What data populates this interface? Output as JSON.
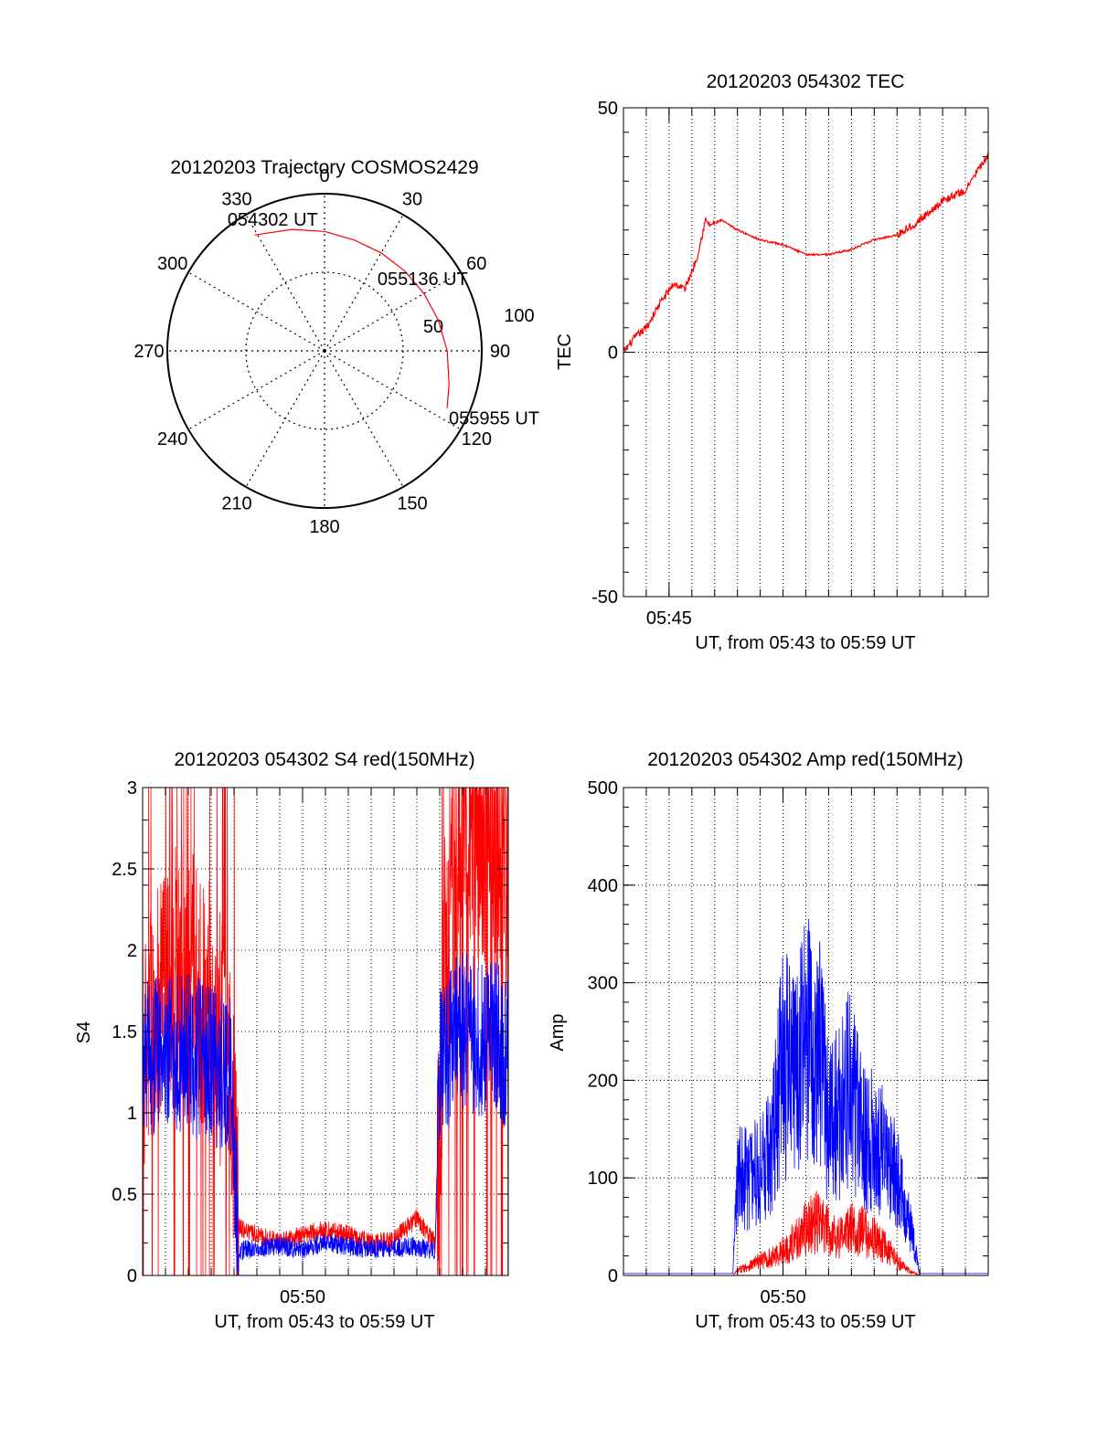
{
  "colors": {
    "red": "#ff0000",
    "blue": "#0000ff",
    "axis": "#000000",
    "grid": "#000000"
  },
  "chart_data": [
    {
      "id": "trajectory",
      "type": "polar",
      "title": "20120203 Trajectory COSMOS2429",
      "angle_labels": [
        "0",
        "30",
        "60",
        "90",
        "120",
        "150",
        "180",
        "210",
        "240",
        "270",
        "300",
        "330"
      ],
      "radial_labels": [
        "50",
        "100"
      ],
      "rlim": [
        0,
        100
      ],
      "grid": true,
      "annotations": [
        {
          "text": "054302 UT",
          "az": 329,
          "r": 86
        },
        {
          "text": "055136 UT",
          "az": 45,
          "r": 64
        },
        {
          "text": "055955 UT",
          "az": 115,
          "r": 86
        }
      ],
      "series": [
        {
          "color": "#ff0000",
          "az": [
            329,
            345,
            0,
            15,
            30,
            45,
            60,
            75,
            90,
            105,
            115
          ],
          "r": [
            86,
            80,
            76,
            73,
            72,
            72,
            73,
            75,
            78,
            82,
            86
          ]
        }
      ]
    },
    {
      "id": "tec",
      "type": "line",
      "title": "20120203 054302 TEC",
      "xlabel": "UT, from 05:43 to 05:59 UT",
      "ylabel": "TEC",
      "xlim": [
        43.0,
        59.0
      ],
      "ylim": [
        -50,
        50
      ],
      "xtick_labels": [
        {
          "value": 45,
          "label": "05:45"
        }
      ],
      "yticks": [
        -50,
        0,
        50
      ],
      "grid": true,
      "series": [
        {
          "color": "#ff0000",
          "x": [
            43.0,
            43.5,
            44.0,
            44.6,
            45.2,
            45.7,
            46.2,
            46.6,
            46.8,
            47.3,
            48.0,
            49.0,
            50.0,
            51.0,
            52.0,
            53.0,
            54.0,
            55.0,
            56.0,
            57.0,
            58.0,
            58.5,
            59.0
          ],
          "y": [
            0,
            3,
            5,
            10,
            14,
            13,
            19,
            27,
            26,
            27,
            25,
            23,
            22,
            20,
            20,
            21,
            23,
            24,
            27,
            31,
            33,
            37,
            40
          ]
        }
      ]
    },
    {
      "id": "s4",
      "type": "line",
      "title": "20120203 054302 S4 red(150MHz)",
      "xlabel": "UT, from 05:43 to 05:59 UT",
      "ylabel": "S4",
      "xlim": [
        43.0,
        59.0
      ],
      "ylim": [
        0,
        3
      ],
      "xtick_labels": [
        {
          "value": 50,
          "label": "05:50"
        }
      ],
      "yticks": [
        0,
        0.5,
        1,
        1.5,
        2,
        2.5,
        3
      ],
      "ytick_labels": [
        "0",
        "0.5",
        "1",
        "1.5",
        "2",
        "2.5",
        "3"
      ],
      "grid": true,
      "series": [
        {
          "color": "#ff0000",
          "x": [
            43.0,
            44.0,
            45.0,
            46.0,
            46.9,
            47.2,
            48.0,
            49.0,
            50.0,
            51.0,
            52.0,
            53.0,
            54.0,
            55.0,
            55.8,
            56.0,
            56.2,
            57.0,
            58.0,
            59.0
          ],
          "y": [
            1.4,
            1.8,
            1.9,
            1.6,
            1.2,
            0.3,
            0.25,
            0.2,
            0.25,
            0.28,
            0.25,
            0.2,
            0.22,
            0.35,
            0.2,
            1.0,
            2.0,
            2.8,
            2.6,
            2.5
          ]
        },
        {
          "color": "#0000ff",
          "x": [
            43.0,
            44.0,
            45.0,
            46.0,
            46.9,
            47.2,
            48.0,
            49.0,
            50.0,
            51.0,
            52.0,
            53.0,
            54.0,
            55.0,
            55.8,
            56.0,
            57.0,
            58.0,
            59.0
          ],
          "y": [
            1.3,
            1.4,
            1.35,
            1.3,
            1.2,
            0.15,
            0.17,
            0.18,
            0.16,
            0.2,
            0.18,
            0.16,
            0.17,
            0.18,
            0.15,
            1.35,
            1.5,
            1.45,
            1.4
          ]
        }
      ]
    },
    {
      "id": "amp",
      "type": "line",
      "title": "20120203 054302 Amp red(150MHz)",
      "xlabel": "UT, from 05:43 to 05:59 UT",
      "ylabel": "Amp",
      "xlim": [
        43.0,
        59.0
      ],
      "ylim": [
        0,
        500
      ],
      "xtick_labels": [
        {
          "value": 50,
          "label": "05:50"
        }
      ],
      "yticks": [
        0,
        100,
        200,
        300,
        400,
        500
      ],
      "grid": true,
      "series": [
        {
          "color": "#ff0000",
          "x": [
            43.0,
            47.8,
            48.0,
            48.5,
            49.0,
            49.5,
            50.0,
            50.5,
            51.0,
            51.5,
            52.0,
            52.5,
            53.0,
            53.5,
            54.0,
            54.5,
            55.0,
            55.5,
            56.0,
            59.0
          ],
          "y": [
            0,
            0,
            5,
            10,
            15,
            18,
            25,
            35,
            48,
            55,
            45,
            40,
            48,
            45,
            38,
            28,
            15,
            5,
            0,
            0
          ]
        },
        {
          "color": "#0000ff",
          "x": [
            43.0,
            47.8,
            48.0,
            48.5,
            49.0,
            49.5,
            50.0,
            50.5,
            51.0,
            51.5,
            52.0,
            52.5,
            53.0,
            53.5,
            54.0,
            54.5,
            55.0,
            55.5,
            56.0,
            59.0
          ],
          "y": [
            2,
            2,
            110,
            100,
            110,
            130,
            220,
            200,
            240,
            250,
            150,
            170,
            200,
            140,
            140,
            120,
            100,
            60,
            2,
            2
          ]
        }
      ]
    }
  ]
}
